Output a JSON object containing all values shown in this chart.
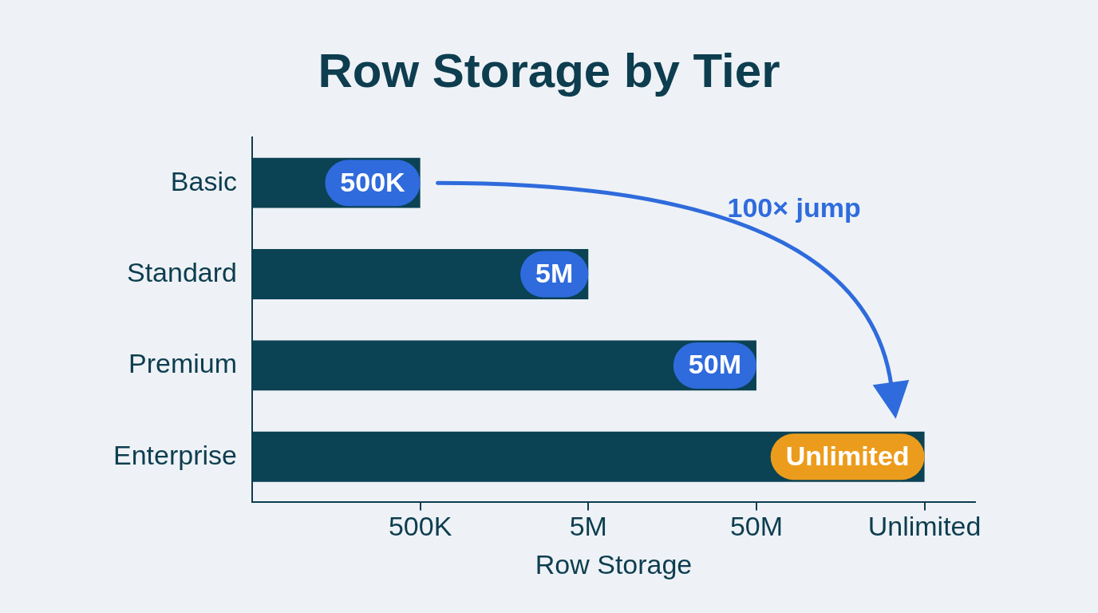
{
  "chart_data": {
    "type": "bar",
    "title": "Row Storage by Tier",
    "xlabel": "Row Storage",
    "categories": [
      "Basic",
      "Standard",
      "Premium",
      "Enterprise"
    ],
    "values": [
      500000,
      5000000,
      50000000,
      500000000
    ],
    "value_labels": [
      "500K",
      "5M",
      "50M",
      "Unlimited"
    ],
    "color": "#0b4254",
    "orientation": "horizontal",
    "log": "x",
    "xlim": [
      50000,
      1000000000
    ],
    "xticks": [
      {
        "value": 500000,
        "label": "500K"
      },
      {
        "value": 5000000,
        "label": "5M"
      },
      {
        "value": 50000000,
        "label": "50M"
      },
      {
        "value": 500000000,
        "label": "Unlimited"
      }
    ],
    "annotations": [
      "100× jump"
    ]
  }
}
